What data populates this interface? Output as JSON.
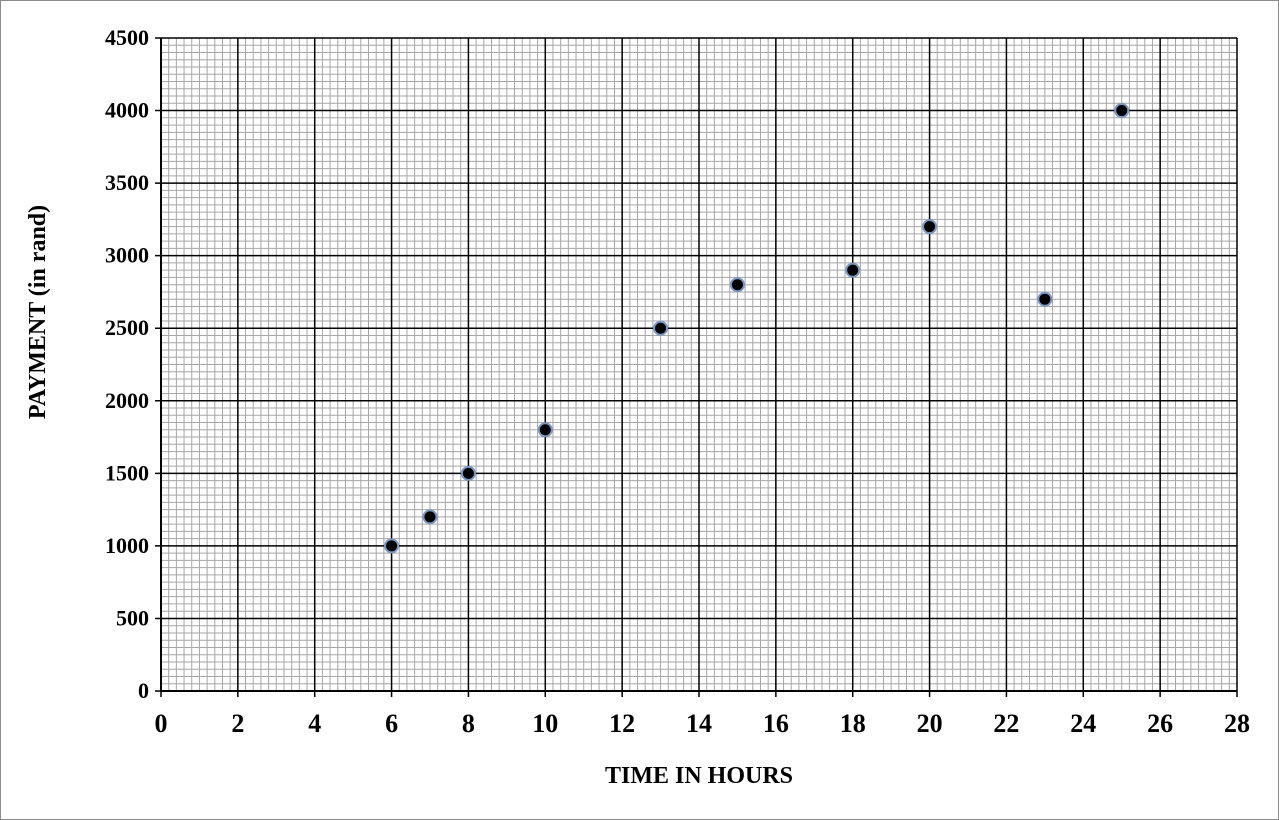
{
  "chart_data": {
    "type": "scatter",
    "title": "",
    "xlabel": "TIME IN HOURS",
    "ylabel": "PAYMENT (in rand)",
    "xlim": [
      0,
      28
    ],
    "ylim": [
      0,
      4500
    ],
    "x_ticks": [
      0,
      2,
      4,
      6,
      8,
      10,
      12,
      14,
      16,
      18,
      20,
      22,
      24,
      26,
      28
    ],
    "y_ticks": [
      0,
      500,
      1000,
      1500,
      2000,
      2500,
      3000,
      3500,
      4000,
      4500
    ],
    "grid": true,
    "legend": "none",
    "points": [
      {
        "x": 6,
        "y": 1000
      },
      {
        "x": 7,
        "y": 1200
      },
      {
        "x": 8,
        "y": 1500
      },
      {
        "x": 10,
        "y": 1800
      },
      {
        "x": 13,
        "y": 2500
      },
      {
        "x": 15,
        "y": 2800
      },
      {
        "x": 18,
        "y": 2900
      },
      {
        "x": 20,
        "y": 3200
      },
      {
        "x": 23,
        "y": 2700
      },
      {
        "x": 25,
        "y": 4000
      }
    ],
    "colors": {
      "marker_fill": "#000000",
      "marker_edge": "#7a98c4",
      "major_grid": "#000000",
      "minor_grid": "#a6a6a6"
    }
  }
}
